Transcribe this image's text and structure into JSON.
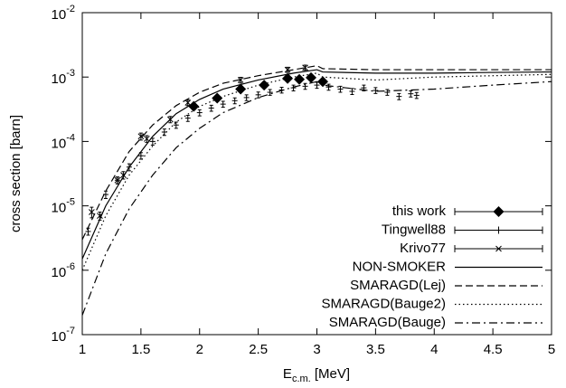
{
  "chart_data": {
    "type": "line",
    "x_label": "E_{c.m.} [MeV]",
    "y_label": "cross section [barn]",
    "xlim": [
      1,
      5
    ],
    "xticks": [
      1,
      1.5,
      2,
      2.5,
      3,
      3.5,
      4,
      4.5,
      5
    ],
    "ylim": [
      1e-07,
      0.01
    ],
    "log_y": true,
    "yticks": [
      {
        "value": 1e-07,
        "label": "10^-7"
      },
      {
        "value": 1e-06,
        "label": "10^-6"
      },
      {
        "value": 1e-05,
        "label": "10^-5"
      },
      {
        "value": 0.0001,
        "label": "10^-4"
      },
      {
        "value": 0.001,
        "label": "10^-3"
      },
      {
        "value": 0.01,
        "label": "10^-2"
      }
    ],
    "legend": "lower right",
    "series": [
      {
        "name": "this work",
        "color": "#000000",
        "marker": "diamond",
        "x": [
          1.95,
          2.15,
          2.35,
          2.55,
          2.75,
          2.85,
          2.95,
          3.05
        ],
        "values": [
          0.00035,
          0.00047,
          0.00065,
          0.00075,
          0.00095,
          0.00092,
          0.00098,
          0.00085
        ],
        "errors": [
          4e-05,
          5e-05,
          6e-05,
          7e-05,
          9e-05,
          9e-05,
          9e-05,
          8e-05
        ]
      },
      {
        "name": "Tingwell88",
        "color": "#000000",
        "marker": "plus",
        "x": [
          1.05,
          1.2,
          1.3,
          1.4,
          1.5,
          1.6,
          1.7,
          1.8,
          1.9,
          2.0,
          2.1,
          2.2,
          2.3,
          2.4,
          2.5,
          2.6,
          2.7,
          2.8,
          2.9,
          3.0,
          3.1,
          3.2,
          3.3,
          3.4,
          3.5,
          3.6,
          3.7,
          3.8,
          3.85
        ],
        "values": [
          4e-06,
          1.5e-05,
          2.5e-05,
          4e-05,
          6e-05,
          0.0001,
          0.00014,
          0.00018,
          0.00023,
          0.00028,
          0.00033,
          0.00038,
          0.00043,
          0.00048,
          0.00053,
          0.00058,
          0.00063,
          0.00068,
          0.00072,
          0.00075,
          0.0007,
          0.00065,
          0.0006,
          0.00068,
          0.00062,
          0.00058,
          0.0005,
          0.00055,
          0.00052
        ],
        "errors": [
          5e-07,
          2e-06,
          3e-06,
          5e-06,
          7e-06,
          1.2e-05,
          1.6e-05,
          2e-05,
          2.5e-05,
          3e-05,
          3.5e-05,
          4e-05,
          4.5e-05,
          5e-05,
          5.5e-05,
          6e-05,
          6.5e-05,
          7e-05,
          7.5e-05,
          8e-05,
          7.5e-05,
          7e-05,
          6.5e-05,
          7e-05,
          6.5e-05,
          6e-05,
          5.5e-05,
          6e-05,
          5.5e-05
        ]
      },
      {
        "name": "Krivo77",
        "color": "#000000",
        "marker": "cross",
        "x": [
          1.08,
          1.15,
          1.3,
          1.35,
          1.5,
          1.55,
          1.75,
          1.9,
          2.35,
          2.75,
          2.9
        ],
        "values": [
          8e-06,
          7e-06,
          2.5e-05,
          3e-05,
          0.00012,
          0.00011,
          0.00022,
          0.0004,
          0.0009,
          0.0013,
          0.0014
        ],
        "errors": [
          1.5e-06,
          1e-06,
          3e-06,
          4e-06,
          1.5e-05,
          1.3e-05,
          2.5e-05,
          4e-05,
          9e-05,
          0.00012,
          0.00013
        ]
      },
      {
        "name": "NON-SMOKER",
        "color": "#000000",
        "line_style": "solid",
        "x": [
          1.0,
          1.2,
          1.4,
          1.6,
          1.8,
          2.0,
          2.2,
          2.5,
          2.8,
          3.0,
          3.05,
          3.5,
          4.0,
          4.5,
          5.0
        ],
        "values": [
          1.5e-06,
          1e-05,
          4e-05,
          0.00012,
          0.00027,
          0.00045,
          0.00065,
          0.0009,
          0.00115,
          0.0013,
          0.0012,
          0.00115,
          0.00115,
          0.00118,
          0.0012
        ]
      },
      {
        "name": "SMARAGD(Lej)",
        "color": "#000000",
        "line_style": "dashed",
        "x": [
          1.0,
          1.2,
          1.4,
          1.6,
          1.8,
          2.0,
          2.2,
          2.5,
          2.8,
          3.0,
          3.05,
          3.5,
          4.0,
          5.0
        ],
        "values": [
          3e-06,
          1.7e-05,
          7e-05,
          0.00018,
          0.00036,
          0.00058,
          0.0008,
          0.00105,
          0.0013,
          0.0015,
          0.00135,
          0.0013,
          0.0013,
          0.0013
        ]
      },
      {
        "name": "SMARAGD(Bauge2)",
        "color": "#000000",
        "line_style": "dotted",
        "x": [
          1.0,
          1.2,
          1.4,
          1.6,
          1.8,
          2.0,
          2.2,
          2.5,
          2.8,
          3.0,
          3.05,
          3.5,
          4.0,
          5.0
        ],
        "values": [
          1e-06,
          7e-06,
          3e-05,
          8.5e-05,
          0.0002,
          0.00035,
          0.0005,
          0.00075,
          0.001,
          0.00115,
          0.001,
          0.0009,
          0.001,
          0.0011
        ]
      },
      {
        "name": "SMARAGD(Bauge)",
        "color": "#000000",
        "line_style": "dashdot",
        "x": [
          1.0,
          1.2,
          1.4,
          1.6,
          1.8,
          2.0,
          2.2,
          2.5,
          2.8,
          3.0,
          3.05,
          3.5,
          4.0,
          4.5,
          5.0
        ],
        "values": [
          2e-07,
          1.8e-06,
          9e-06,
          3e-05,
          8e-05,
          0.00016,
          0.00028,
          0.00048,
          0.0007,
          0.00085,
          0.00075,
          0.0006,
          0.00065,
          0.00075,
          0.00085
        ]
      }
    ]
  }
}
